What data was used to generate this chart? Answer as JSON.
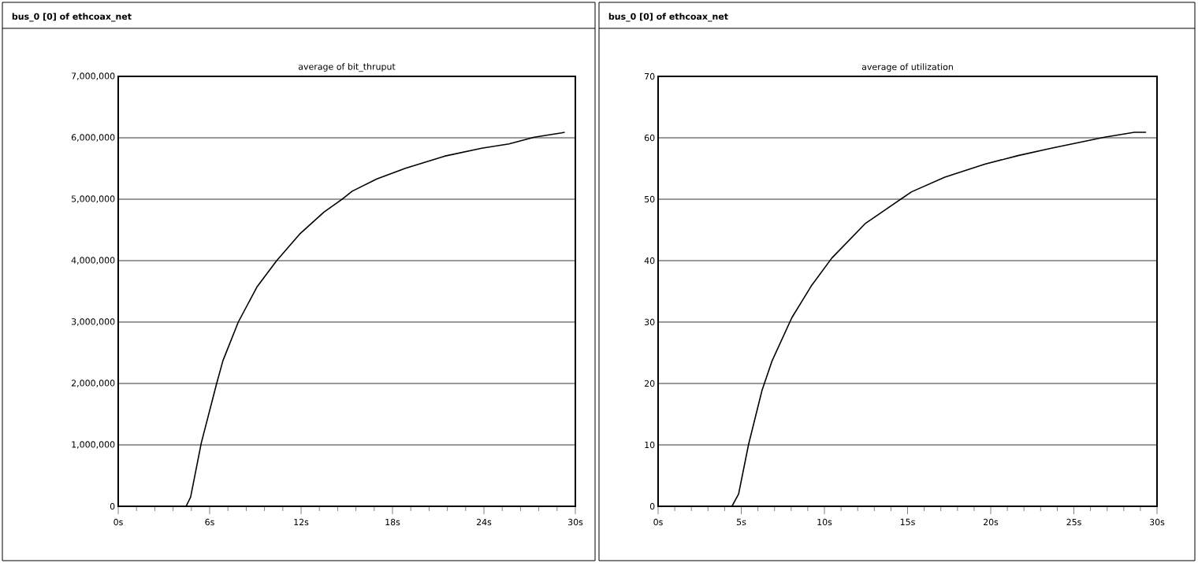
{
  "chart_data": [
    {
      "type": "line",
      "title": "bus_0 [0] of ethcoax_net",
      "subtitle": "average of bit_thruput",
      "x": [
        0,
        4.45,
        4.75,
        5.45,
        6.46,
        6.87,
        7.88,
        9.1,
        10.4,
        11.9,
        13.5,
        14.75,
        15.35,
        16.97,
        18.8,
        21.4,
        23.85,
        25.65,
        27.3,
        29.1,
        29.3
      ],
      "series": [
        {
          "color": "#000000",
          "values": [
            0,
            0,
            150000,
            1030000,
            2000000,
            2370000,
            3000000,
            3570000,
            4000000,
            4430000,
            4790000,
            5010000,
            5130000,
            5330000,
            5500000,
            5700000,
            5830000,
            5900000,
            6010000,
            6080000,
            6090000
          ]
        }
      ],
      "xlim": [
        0,
        30
      ],
      "ylim": [
        0,
        7000000
      ],
      "xticks": [
        {
          "value": 0,
          "label": "0s"
        },
        {
          "value": 6,
          "label": "6s"
        },
        {
          "value": 12,
          "label": "12s"
        },
        {
          "value": 18,
          "label": "18s"
        },
        {
          "value": 24,
          "label": "24s"
        },
        {
          "value": 30,
          "label": "30s"
        }
      ],
      "yticks": [
        0,
        {
          "value": 1000000,
          "label": "1,000,000"
        },
        {
          "value": 2000000,
          "label": "2,000,000"
        },
        {
          "value": 3000000,
          "label": "3,000,000"
        },
        {
          "value": 4000000,
          "label": "4,000,000"
        },
        {
          "value": 5000000,
          "label": "5,000,000"
        },
        {
          "value": 6000000,
          "label": "6,000,000"
        },
        {
          "value": 7000000,
          "label": "7,000,000"
        }
      ],
      "grid": "y",
      "marker": "none",
      "line_style": "solid"
    },
    {
      "type": "line",
      "title": "bus_0 [0] of ethcoax_net",
      "subtitle": "average of utilization",
      "x": [
        0,
        4.44,
        4.84,
        5.44,
        6.24,
        6.84,
        8.04,
        9.24,
        10.44,
        12.44,
        14.64,
        15.24,
        17.24,
        19.64,
        21.64,
        23.64,
        26.84,
        28.64,
        29.34
      ],
      "series": [
        {
          "color": "#000000",
          "values": [
            0,
            0,
            2,
            10.1,
            18.8,
            23.6,
            30.7,
            36,
            40.4,
            46,
            50.1,
            51.2,
            53.6,
            55.7,
            57.1,
            58.3,
            60.1,
            60.9,
            60.9
          ]
        }
      ],
      "xlim": [
        0,
        30
      ],
      "ylim": [
        0,
        70
      ],
      "xticks": [
        {
          "value": 0,
          "label": "0s"
        },
        {
          "value": 5,
          "label": "5s"
        },
        {
          "value": 10,
          "label": "10s"
        },
        {
          "value": 15,
          "label": "15s"
        },
        {
          "value": 20,
          "label": "20s"
        },
        {
          "value": 25,
          "label": "25s"
        },
        {
          "value": 30,
          "label": "30s"
        }
      ],
      "yticks": [
        0,
        10,
        20,
        30,
        40,
        50,
        60,
        70
      ],
      "grid": "y",
      "marker": "none",
      "line_style": "solid"
    }
  ]
}
